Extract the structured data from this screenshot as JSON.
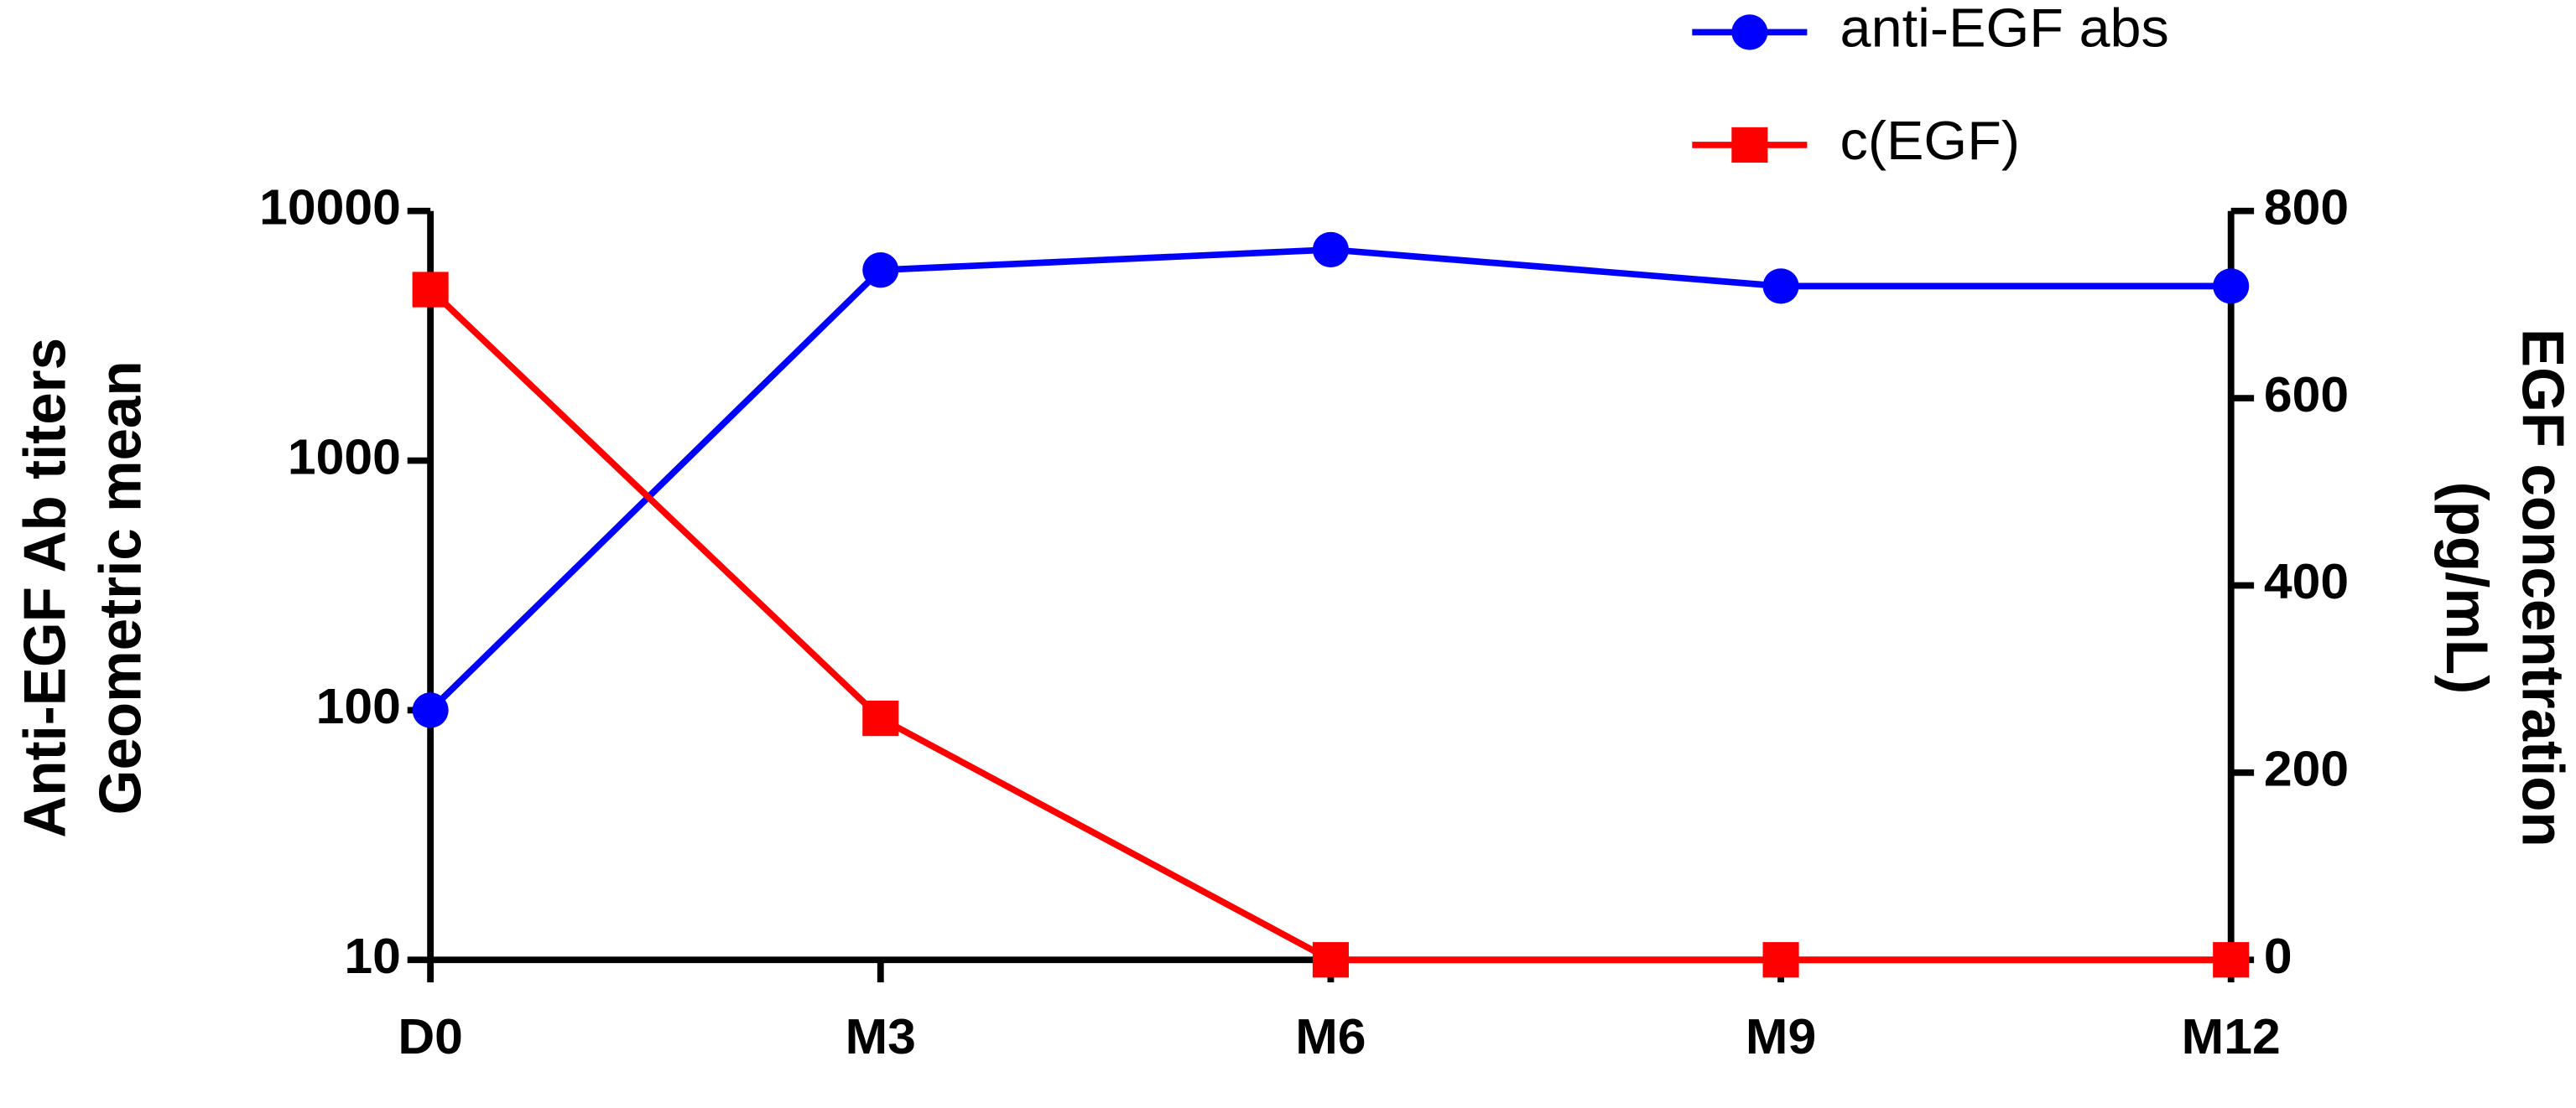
{
  "chart_data": {
    "type": "line",
    "categories": [
      "D0",
      "M3",
      "M6",
      "M9",
      "M12"
    ],
    "y_label": [
      "Anti-EGF Ab titers",
      "Geometric mean"
    ],
    "y2_label": [
      "EGF concentration",
      "(pg/mL)"
    ],
    "yscale": "log",
    "ylim": [
      10,
      10000
    ],
    "yticks": [
      10,
      100,
      1000,
      10000
    ],
    "y2lim": [
      0,
      800
    ],
    "y2ticks": [
      0,
      200,
      400,
      600,
      800
    ],
    "legend": "upper right",
    "series": [
      {
        "name": "anti-EGF abs",
        "color": "#0000ff",
        "marker": "circle",
        "values": [
          100,
          5800,
          7000,
          5000,
          5000
        ]
      },
      {
        "name": "c(EGF)",
        "color": "#ff0000",
        "marker": "square",
        "axis": "y2",
        "values": [
          716,
          258,
          0,
          0,
          0
        ]
      }
    ]
  }
}
